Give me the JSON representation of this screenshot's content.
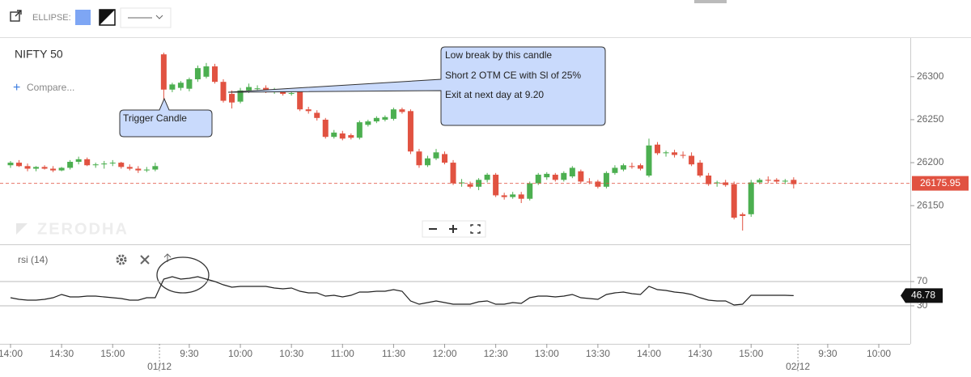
{
  "toolbar": {
    "label": "ELLIPSE:"
  },
  "chart_data": {
    "type": "candlestick",
    "title": "NIFTY 50",
    "compare": "Compare...",
    "watermark": "ZERODHA",
    "up_color": "#4caf50",
    "down_color": "#e15241",
    "categories": [
      "14:00",
      null,
      null,
      null,
      null,
      null,
      "14:30",
      null,
      null,
      null,
      null,
      null,
      "15:00",
      null,
      null,
      null,
      null,
      null,
      null,
      null,
      null,
      "9:30",
      null,
      null,
      null,
      null,
      null,
      "10:00",
      null,
      null,
      null,
      null,
      null,
      "10:30",
      null,
      null,
      null,
      null,
      null,
      "11:00",
      null,
      null,
      null,
      null,
      null,
      "11:30",
      null,
      null,
      null,
      null,
      null,
      "12:00",
      null,
      null,
      null,
      null,
      null,
      "12:30",
      null,
      null,
      null,
      null,
      null,
      "13:00",
      null,
      null,
      null,
      null,
      null,
      "13:30",
      null,
      null,
      null,
      null,
      null,
      "14:00",
      null,
      null,
      null,
      null,
      null,
      "14:30",
      null,
      null,
      null,
      null,
      null,
      "15:00",
      null,
      null,
      null,
      null,
      null,
      null,
      null,
      null,
      "9:30",
      null,
      null,
      null,
      null,
      null,
      "10:00",
      null,
      null,
      null
    ],
    "date_categories": [
      null,
      null,
      null,
      null,
      null,
      null,
      null,
      null,
      null,
      null,
      null,
      null,
      null,
      null,
      null,
      null,
      null,
      null,
      "01/12",
      null,
      null,
      null,
      null,
      null,
      null,
      null,
      null,
      null,
      null,
      null,
      null,
      null,
      null,
      null,
      null,
      null,
      null,
      null,
      null,
      null,
      null,
      null,
      null,
      null,
      null,
      null,
      null,
      null,
      null,
      null,
      null,
      null,
      null,
      null,
      null,
      null,
      null,
      null,
      null,
      null,
      null,
      null,
      null,
      null,
      null,
      null,
      null,
      null,
      null,
      null,
      null,
      null,
      null,
      null,
      null,
      null,
      null,
      null,
      null,
      null,
      null,
      null,
      null,
      null,
      null,
      null,
      null,
      null,
      null,
      null,
      null,
      null,
      null,
      "02/12",
      null,
      null,
      null,
      null,
      null,
      null,
      null,
      null,
      null,
      null,
      null,
      null
    ],
    "open": [
      26197,
      26200,
      26196,
      26193,
      26195,
      26193,
      26191,
      26194,
      26201,
      26204,
      26197,
      26198,
      26199,
      26200,
      26195,
      26193,
      26191,
      26192,
      26326,
      26285,
      26287,
      26286,
      26297,
      26300,
      26312,
      26294,
      26280,
      26271,
      26284,
      26286,
      26287,
      26283,
      26283,
      26280,
      26283,
      26262,
      26258,
      26250,
      26230,
      26234,
      26232,
      26229,
      26244,
      26248,
      26250,
      26251,
      26262,
      26260,
      26213,
      26197,
      26205,
      26210,
      26200,
      26176,
      26175,
      26172,
      26180,
      26186,
      26162,
      26160,
      26163,
      26158,
      26176,
      26183,
      26186,
      26180,
      26184,
      26190,
      26178,
      26178,
      26172,
      26188,
      26192,
      26196,
      26197,
      26185,
      26221,
      26211,
      26212,
      26209,
      26208,
      26200,
      26185,
      26176,
      26177,
      26175,
      26140,
      26140,
      26177,
      26180,
      26180,
      26178,
      26180,
      null,
      null,
      null,
      null,
      null,
      null,
      null,
      null,
      null,
      null,
      null,
      null,
      null
    ],
    "high": [
      26202,
      26203,
      26199,
      26196,
      26197,
      26196,
      26195,
      26203,
      26207,
      26206,
      26200,
      26202,
      26203,
      26201,
      26198,
      26196,
      26195,
      26200,
      26328,
      26293,
      26295,
      26299,
      26313,
      26316,
      26315,
      26297,
      26284,
      26287,
      26292,
      26290,
      26290,
      26287,
      26286,
      26284,
      26285,
      26265,
      26261,
      26252,
      26238,
      26237,
      26234,
      26249,
      26250,
      26254,
      26255,
      26264,
      26264,
      26262,
      26216,
      26208,
      26216,
      26213,
      26203,
      26181,
      26178,
      26182,
      26188,
      26188,
      26165,
      26166,
      26166,
      26178,
      26188,
      26189,
      26188,
      26190,
      26196,
      26192,
      26182,
      26180,
      26190,
      26197,
      26199,
      26200,
      26199,
      26228,
      26224,
      26214,
      26215,
      26213,
      26212,
      26203,
      26188,
      26179,
      26180,
      26178,
      26142,
      26180,
      26182,
      26184,
      26182,
      26181,
      26183,
      null,
      null,
      null,
      null,
      null,
      null,
      null,
      null,
      null,
      null,
      null,
      null,
      null
    ],
    "low": [
      26194,
      26195,
      26190,
      26190,
      26192,
      26189,
      26190,
      26192,
      26198,
      26196,
      26194,
      26193,
      26196,
      26193,
      26191,
      26188,
      26189,
      26190,
      26269,
      26282,
      26284,
      26283,
      26294,
      26298,
      26292,
      26270,
      26263,
      26269,
      26281,
      26283,
      26281,
      26280,
      26278,
      26278,
      26260,
      26257,
      26249,
      26228,
      26228,
      26226,
      26227,
      26227,
      26242,
      26246,
      26248,
      26249,
      26257,
      26210,
      26194,
      26195,
      26203,
      26198,
      26174,
      26172,
      26170,
      26168,
      26177,
      26160,
      26157,
      26158,
      26153,
      26156,
      26174,
      26180,
      26178,
      26178,
      26182,
      26176,
      26175,
      26170,
      26170,
      26186,
      26190,
      26193,
      26191,
      26183,
      26209,
      26207,
      26206,
      26205,
      26196,
      26183,
      26173,
      26172,
      26172,
      26134,
      26121,
      26137,
      26175,
      26176,
      26176,
      26175,
      26170,
      null,
      null,
      null,
      null,
      null,
      null,
      null,
      null,
      null,
      null,
      null,
      null,
      null
    ],
    "close": [
      26200,
      26196,
      26193,
      26195,
      26193,
      26191,
      26194,
      26201,
      26204,
      26197,
      26198,
      26199,
      26200,
      26195,
      26193,
      26191,
      26192,
      26196,
      26285,
      26291,
      26293,
      26297,
      26310,
      26312,
      26294,
      26272,
      26270,
      26284,
      26288,
      26286.5,
      26283,
      26284,
      26280,
      26281,
      26262,
      26260,
      26252,
      26230,
      26235,
      26228,
      26229,
      26247,
      26248,
      26252,
      26253,
      26262,
      26259,
      26213,
      26197,
      26205,
      26212,
      26200,
      26176,
      26177,
      26172,
      26180,
      26186,
      26162,
      26160,
      26163,
      26158,
      26176,
      26186,
      26187,
      26180,
      26188,
      26194,
      26178,
      26177,
      26172,
      26188,
      26194,
      26197,
      26195,
      26193,
      26220,
      26211,
      26212,
      26209,
      26208,
      26198,
      26185,
      26175,
      26177,
      26174,
      26136,
      26138,
      26177,
      26180,
      26179,
      26178,
      26179,
      26175,
      null,
      null,
      null,
      null,
      null,
      null,
      null,
      null,
      null,
      null,
      null,
      null,
      null
    ],
    "ylim": [
      26105,
      26345
    ],
    "yticks": [
      26300,
      26250,
      26200,
      26150
    ],
    "yticks_labels_format": null,
    "last_price": 26175.95,
    "indicator": {
      "name": "rsi (14)",
      "color": "#222222",
      "values": [
        43.3,
        40.7,
        39.3,
        39.3,
        40.7,
        43.3,
        48.7,
        44.7,
        44.7,
        46,
        46,
        44.7,
        43.3,
        42,
        39.3,
        39.3,
        43.3,
        43.3,
        74,
        78,
        74,
        75.3,
        78,
        74,
        70,
        64.7,
        60.7,
        62,
        62,
        62,
        62,
        59.3,
        58,
        59.3,
        54,
        51.3,
        51.3,
        46,
        47.3,
        44.7,
        47.3,
        52.7,
        52.7,
        54,
        54,
        56.7,
        54,
        38,
        32.7,
        35.3,
        38,
        35.3,
        32.7,
        32.7,
        32.7,
        36.7,
        38,
        32.7,
        32.7,
        35.3,
        34,
        43.3,
        46,
        46,
        44.7,
        46,
        48.7,
        43.3,
        42,
        40.7,
        48.7,
        51.3,
        52.7,
        50,
        48.7,
        62,
        56.7,
        55.3,
        52.7,
        51.3,
        48.7,
        43.3,
        39.3,
        38,
        38,
        31.3,
        32.7,
        47.3,
        47.3,
        47.3,
        47.3,
        47.3,
        46.78,
        null,
        null,
        null,
        null,
        null,
        null,
        null,
        null,
        null,
        null,
        null,
        null,
        null
      ],
      "ylim": [
        -26,
        131.3
      ],
      "yticks": [
        70,
        30
      ],
      "last_value": 46.78
    },
    "annotations": [
      {
        "text": "Trigger Candle"
      },
      {
        "lines": [
          "Low break by this candle",
          "Short 2 OTM CE with Sl of 25%",
          "Exit at next day at 9.20"
        ]
      }
    ]
  }
}
